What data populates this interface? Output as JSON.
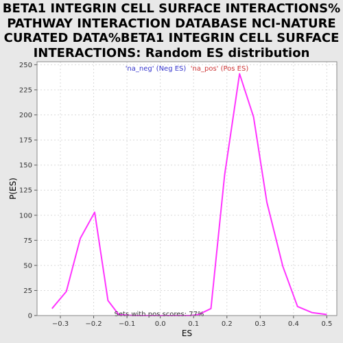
{
  "title_lines": [
    "BETA1 INTEGRIN CELL SURFACE INTERACTIONS%",
    "PATHWAY INTERACTION DATABASE NCI-NATURE",
    "CURATED DATA%BETA1 INTEGRIN CELL SURFACE",
    "INTERACTIONS: Random ES distribution"
  ],
  "colors": {
    "background": "#e8e8e8",
    "plot_bg": "#ffffff",
    "line": "#ff33ff",
    "legend_neg": "#3333cc",
    "legend_pos": "#cc3333",
    "grid": "#d9d9d9"
  },
  "chart_data": {
    "type": "line",
    "xlabel": "ES",
    "ylabel": "P(ES)",
    "xlim": [
      -0.37,
      0.53
    ],
    "ylim": [
      0,
      253
    ],
    "xticks": [
      -0.3,
      -0.2,
      -0.1,
      0.0,
      0.1,
      0.2,
      0.3,
      0.4,
      0.5
    ],
    "xtick_labels": [
      "−0.3",
      "−0.2",
      "−0.1",
      "0.0",
      "0.1",
      "0.2",
      "0.3",
      "0.4",
      "0.5"
    ],
    "yticks": [
      0,
      25,
      50,
      75,
      100,
      125,
      150,
      175,
      200,
      225,
      250
    ],
    "grid": true,
    "legend": [
      {
        "label": "'na_neg' (Neg ES)",
        "color": "#3333cc"
      },
      {
        "label": "'na_pos' (Pos ES)",
        "color": "#cc3333"
      }
    ],
    "annotation": "Sets with pos scores: 77%",
    "series": [
      {
        "color": "#ff33ff",
        "x": [
          -0.325,
          -0.282,
          -0.24,
          -0.197,
          -0.157,
          -0.125,
          -0.08,
          -0.04,
          0.0,
          0.05,
          0.09,
          0.115,
          0.152,
          0.193,
          0.238,
          0.28,
          0.32,
          0.368,
          0.412,
          0.455,
          0.5
        ],
        "y": [
          7,
          24,
          77,
          103,
          15,
          1,
          0,
          0,
          0,
          0,
          0,
          1,
          7,
          140,
          241,
          198,
          113,
          49,
          9,
          3,
          1
        ]
      }
    ]
  }
}
